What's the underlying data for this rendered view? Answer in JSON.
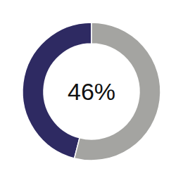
{
  "chart_data": {
    "type": "donut",
    "values": [
      46,
      54
    ],
    "value_labels": [
      "46%",
      null
    ],
    "colors": [
      "#2e2a62",
      "#a4a4a1"
    ]
  }
}
